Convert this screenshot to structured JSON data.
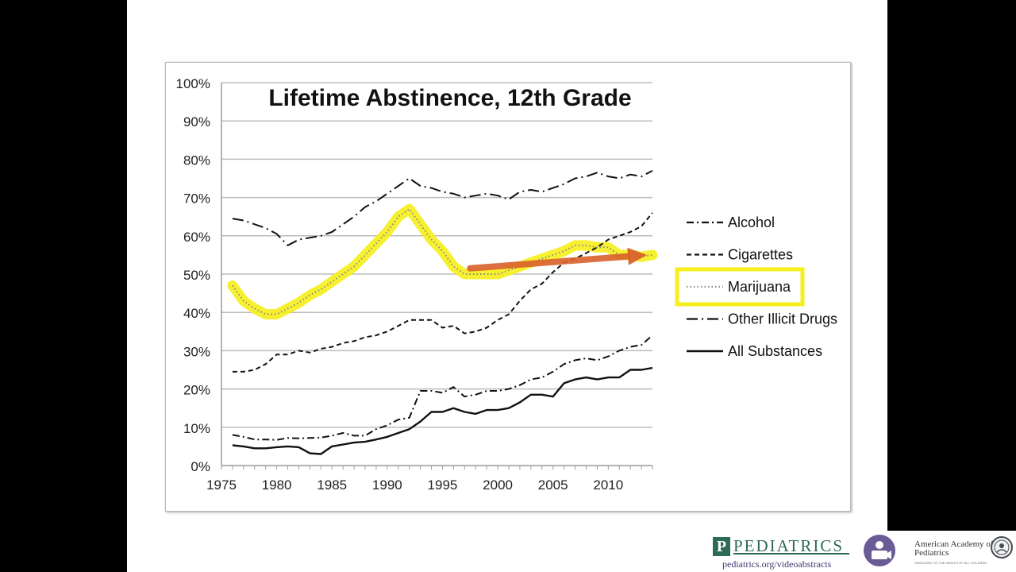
{
  "chart_data": {
    "type": "line",
    "title": "Lifetime Abstinence, 12th Grade",
    "xlabel": "",
    "ylabel": "",
    "xlim": [
      1975,
      2014
    ],
    "ylim": [
      0,
      100
    ],
    "x_ticks": [
      1975,
      1980,
      1985,
      1990,
      1995,
      2000,
      2005,
      2010
    ],
    "y_ticks": [
      "0%",
      "10%",
      "20%",
      "30%",
      "40%",
      "50%",
      "60%",
      "70%",
      "80%",
      "90%",
      "100%"
    ],
    "grid": true,
    "legend_position": "right",
    "x": [
      1976,
      1977,
      1978,
      1979,
      1980,
      1981,
      1982,
      1983,
      1984,
      1985,
      1986,
      1987,
      1988,
      1989,
      1990,
      1991,
      1992,
      1993,
      1994,
      1995,
      1996,
      1997,
      1998,
      1999,
      2000,
      2001,
      2002,
      2003,
      2004,
      2005,
      2006,
      2007,
      2008,
      2009,
      2010,
      2011,
      2012,
      2013,
      2014
    ],
    "series": [
      {
        "name": "Alcohol",
        "style": "dash-dot",
        "values": [
          8,
          7.5,
          6.8,
          6.8,
          6.7,
          7.2,
          7.1,
          7.2,
          7.3,
          7.8,
          8.5,
          7.8,
          7.8,
          9.5,
          10.5,
          12,
          12.5,
          19.5,
          19.5,
          19,
          20.5,
          18,
          18.5,
          19.5,
          19.5,
          20,
          21,
          22.5,
          23,
          24.5,
          26.5,
          27.5,
          28,
          27.5,
          28.5,
          30,
          31,
          31.5,
          34
        ]
      },
      {
        "name": "Cigarettes",
        "style": "dashed",
        "values": [
          24.5,
          24.5,
          25,
          26.5,
          29,
          29,
          30,
          29.5,
          30.5,
          31,
          32,
          32.5,
          33.5,
          34,
          35,
          36.5,
          38,
          38,
          38,
          36,
          36.5,
          34.5,
          35,
          36,
          38,
          39.5,
          43,
          46,
          47.5,
          50.5,
          53,
          54,
          55.5,
          57,
          59,
          60,
          61,
          62.5,
          66
        ]
      },
      {
        "name": "Marijuana",
        "style": "dotted",
        "values": [
          47,
          43,
          41,
          39.5,
          39.5,
          41,
          42.5,
          44.5,
          46,
          48,
          50,
          52,
          55,
          58,
          61,
          65,
          67,
          63,
          59,
          56,
          52,
          50,
          50,
          50,
          50,
          51,
          52,
          53,
          54,
          55,
          56,
          57.5,
          57.5,
          57,
          57,
          55,
          55,
          54.5,
          55
        ]
      },
      {
        "name": "Other Illicit Drugs",
        "style": "long-dash-dot",
        "values": [
          64.5,
          64,
          63,
          62,
          60.5,
          57.5,
          59,
          59.5,
          60,
          61,
          63,
          65,
          67.5,
          69,
          71,
          73,
          75,
          73,
          72.5,
          71.5,
          71,
          70,
          70.5,
          71,
          70.5,
          69.5,
          71.5,
          72,
          71.5,
          72.5,
          73.5,
          75,
          75.5,
          76.5,
          75.5,
          75,
          76,
          75.5,
          77
        ]
      },
      {
        "name": "All Substances",
        "style": "solid",
        "values": [
          5.3,
          5,
          4.5,
          4.5,
          4.8,
          5,
          4.8,
          3.2,
          3,
          5,
          5.5,
          6,
          6.2,
          6.8,
          7.5,
          8.5,
          9.5,
          11.5,
          14,
          14,
          15,
          14,
          13.5,
          14.5,
          14.5,
          15,
          16.5,
          18.5,
          18.5,
          18,
          21.5,
          22.5,
          23,
          22.5,
          23,
          23,
          25,
          25,
          25.5
        ]
      }
    ],
    "annotations": {
      "highlight_color": "#f6ef1e",
      "highlighted_series": "Marijuana",
      "trend_arrow_color": "#d9622b",
      "trend_arrow_from": {
        "x": 1997.5,
        "y": 51.5
      },
      "trend_arrow_to": {
        "x": 2013.5,
        "y": 55
      }
    }
  },
  "footer": {
    "brand_initial": "P",
    "brand_name": "PEDIATRICS",
    "brand_url": "pediatrics.org/videoabstracts",
    "org_name": "American Academy of Pediatrics",
    "org_tagline": "DEDICATED TO THE HEALTH OF ALL CHILDREN",
    "icon": "video-camera-icon",
    "seal_icon": "aap-seal-icon"
  }
}
